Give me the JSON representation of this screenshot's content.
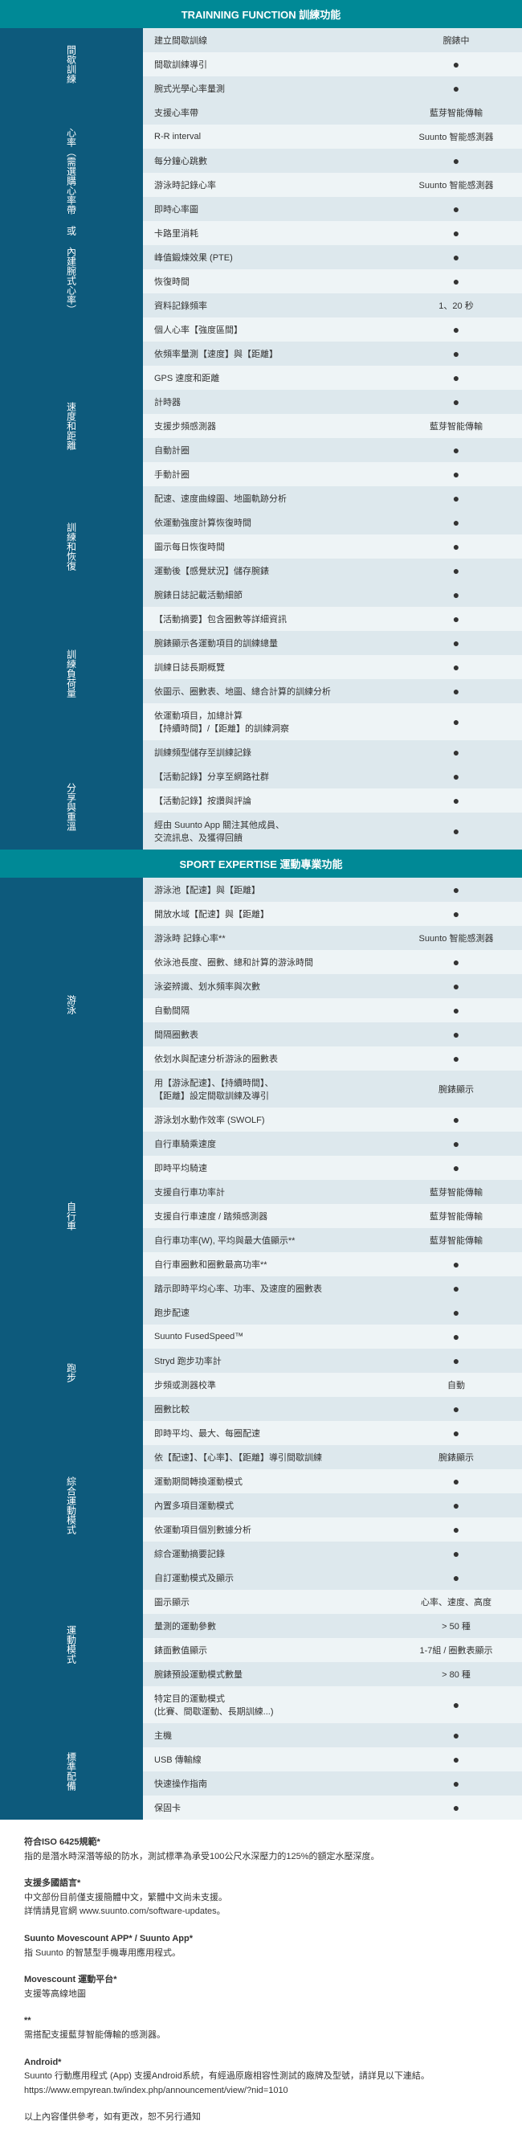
{
  "sections": [
    {
      "header": "TRAINNING FUNCTION 訓練功能",
      "groups": [
        {
          "cat": "間歇訓練",
          "rows": [
            {
              "l": "建立間歇訓線",
              "v": "腕錶中"
            },
            {
              "l": "間歇訓練導引",
              "v": "●"
            },
            {
              "l": "腕式光學心率量測",
              "v": "●"
            }
          ]
        },
        {
          "cat": "心率︵需選購心率帶 或 內建腕式心率︶",
          "rows": [
            {
              "l": "支援心率帶",
              "v": "藍芽智能傳輸"
            },
            {
              "l": "R-R interval",
              "v": "Suunto 智能感測器"
            },
            {
              "l": "每分鐘心跳數",
              "v": "●"
            },
            {
              "l": "游泳時記錄心率",
              "v": "Suunto 智能感測器"
            },
            {
              "l": "即時心率圖",
              "v": "●"
            },
            {
              "l": "卡路里消耗",
              "v": "●"
            },
            {
              "l": "峰值鍛煉效果 (PTE)",
              "v": "●"
            },
            {
              "l": "恢復時間",
              "v": "●"
            },
            {
              "l": "資料記錄頻率",
              "v": "1、20 秒"
            },
            {
              "l": "個人心率【強度區間】",
              "v": "●"
            }
          ]
        },
        {
          "cat": "速度和距離",
          "rows": [
            {
              "l": "依頻率量測【速度】與【距離】",
              "v": "●"
            },
            {
              "l": "GPS 速度和距離",
              "v": "●"
            },
            {
              "l": "計時器",
              "v": "●"
            },
            {
              "l": "支援步頻感測器",
              "v": "藍芽智能傳輸"
            },
            {
              "l": "自動計圈",
              "v": "●"
            },
            {
              "l": "手動計圈",
              "v": "●"
            },
            {
              "l": "配速、速度曲線圖、地圖軌跡分析",
              "v": "●"
            }
          ]
        },
        {
          "cat": "訓練和恢復",
          "rows": [
            {
              "l": "依運動強度計算恢復時間",
              "v": "●"
            },
            {
              "l": "圖示每日恢復時間",
              "v": "●"
            },
            {
              "l": "運動後【感覺狀況】儲存腕錶",
              "v": "●"
            }
          ]
        },
        {
          "cat": "訓練負荷量",
          "rows": [
            {
              "l": "腕錶日誌記載活動細節",
              "v": "●"
            },
            {
              "l": "【活動摘要】包含圈數等詳細資訊",
              "v": "●"
            },
            {
              "l": "腕錶顯示各運動項目的訓練總量",
              "v": "●"
            },
            {
              "l": "訓練日誌長期概覽",
              "v": "●"
            },
            {
              "l": "依圖示、圈數表、地圖、總合計算的訓練分析",
              "v": "●"
            },
            {
              "l": "依運動項目，加總計算\n【持續時間】/【距離】的訓練洞察",
              "v": "●"
            },
            {
              "l": "訓練頻型儲存至訓練記錄",
              "v": "●"
            }
          ]
        },
        {
          "cat": "分享與重溫",
          "rows": [
            {
              "l": "【活動記錄】分享至網路社群",
              "v": "●"
            },
            {
              "l": "【活動記錄】按讚與評論",
              "v": "●"
            },
            {
              "l": "經由 Suunto App 關注其他成員、\n交流訊息、及獲得回饋",
              "v": "●"
            }
          ]
        }
      ]
    },
    {
      "header": "SPORT EXPERTISE 運動專業功能",
      "groups": [
        {
          "cat": "游泳",
          "rows": [
            {
              "l": "游泳池【配速】與【距離】",
              "v": "●"
            },
            {
              "l": "開放水域【配速】與【距離】",
              "v": "●"
            },
            {
              "l": "游泳時 記錄心率**",
              "v": "Suunto 智能感測器"
            },
            {
              "l": "依泳池長度、圈數、總和計算的游泳時間",
              "v": "●"
            },
            {
              "l": "泳姿辨識、划水頻率與次數",
              "v": "●"
            },
            {
              "l": "自動間隔",
              "v": "●"
            },
            {
              "l": "間隔圈數表",
              "v": "●"
            },
            {
              "l": "依划水與配速分析游泳的圈數表",
              "v": "●"
            },
            {
              "l": "用【游泳配速】、【持續時間】、\n【距離】設定間歇訓練及導引",
              "v": "腕錶顯示"
            },
            {
              "l": "游泳划水動作效率 (SWOLF)",
              "v": "●"
            }
          ]
        },
        {
          "cat": "自行車",
          "rows": [
            {
              "l": "自行車騎乘速度",
              "v": "●"
            },
            {
              "l": "即時平均騎速",
              "v": "●"
            },
            {
              "l": "支援自行車功率計",
              "v": "藍芽智能傳輸"
            },
            {
              "l": "支援自行車速度 / 踏頻感測器",
              "v": "藍芽智能傳輸"
            },
            {
              "l": "自行車功率(W), 平均與最大值顯示**",
              "v": "藍芽智能傳輸"
            },
            {
              "l": "自行車圈數和圈數最高功率**",
              "v": "●"
            },
            {
              "l": "踏示即時平均心率、功率、及速度的圈數表",
              "v": "●"
            }
          ]
        },
        {
          "cat": "跑步",
          "rows": [
            {
              "l": "跑步配速",
              "v": "●"
            },
            {
              "l": "Suunto FusedSpeed™",
              "v": "●"
            },
            {
              "l": "Stryd 跑步功率計",
              "v": "●"
            },
            {
              "l": "步頻或測器校準",
              "v": "自動"
            },
            {
              "l": "圈數比較",
              "v": "●"
            },
            {
              "l": "即時平均、最大、每圈配速",
              "v": "●"
            }
          ]
        },
        {
          "cat": "綜合運動模式",
          "rows": [
            {
              "l": "依【配速】、【心率】、【距離】導引間歇訓練",
              "v": "腕錶顯示"
            },
            {
              "l": "運動期間轉換運動模式",
              "v": "●"
            },
            {
              "l": "內置多項目運動模式",
              "v": "●"
            },
            {
              "l": "依運動項目個別數據分析",
              "v": "●"
            },
            {
              "l": "綜合運動摘要記錄",
              "v": "●"
            }
          ]
        },
        {
          "cat": "運動模式",
          "rows": [
            {
              "l": "自訂運動模式及顯示",
              "v": "●"
            },
            {
              "l": "圖示顯示",
              "v": "心率、速度、高度"
            },
            {
              "l": "量測的運動參數",
              "v": "> 50 種"
            },
            {
              "l": "錶面數值顯示",
              "v": "1-7組 / 圈數表顯示"
            },
            {
              "l": "腕錶預設運動模式數量",
              "v": "> 80 種"
            },
            {
              "l": "特定目的運動模式\n(比賽、間歇運動、長期訓練...)",
              "v": "●"
            }
          ]
        },
        {
          "cat": "標準配備",
          "rows": [
            {
              "l": "主機",
              "v": "●"
            },
            {
              "l": "USB 傳輸線",
              "v": "●"
            },
            {
              "l": "快速操作指南",
              "v": "●"
            },
            {
              "l": "保固卡",
              "v": "●"
            }
          ]
        }
      ]
    }
  ],
  "footer": [
    {
      "t": "符合ISO 6425規範*",
      "d": "指的是潛水時深潛等級的防水，測試標準為承受100公尺水深壓力的125%的額定水壓深度。"
    },
    {
      "t": "支援多國語言*",
      "d": "中文部份目前僅支援簡體中文，繁體中文尚未支援。\n詳情請見官網 www.suunto.com/software-updates。"
    },
    {
      "t": "Suunto Movescount APP* / Suunto App*",
      "d": "指 Suunto 的智慧型手機專用應用程式。"
    },
    {
      "t": "Movescount 運動平台*",
      "d": "支援等高線地圖"
    },
    {
      "t": "**",
      "d": "需搭配支援藍芽智能傳輸的感測器。"
    },
    {
      "t": "Android*",
      "d": "Suunto 行動應用程式 (App) 支援Android系統，有經過原廠相容性測試的廠牌及型號，請詳見以下連結。\nhttps://www.empyrean.tw/index.php/announcement/view/?nid=1010"
    },
    {
      "t": "",
      "d": "以上內容僅供參考，如有更改，恕不另行通知"
    }
  ]
}
